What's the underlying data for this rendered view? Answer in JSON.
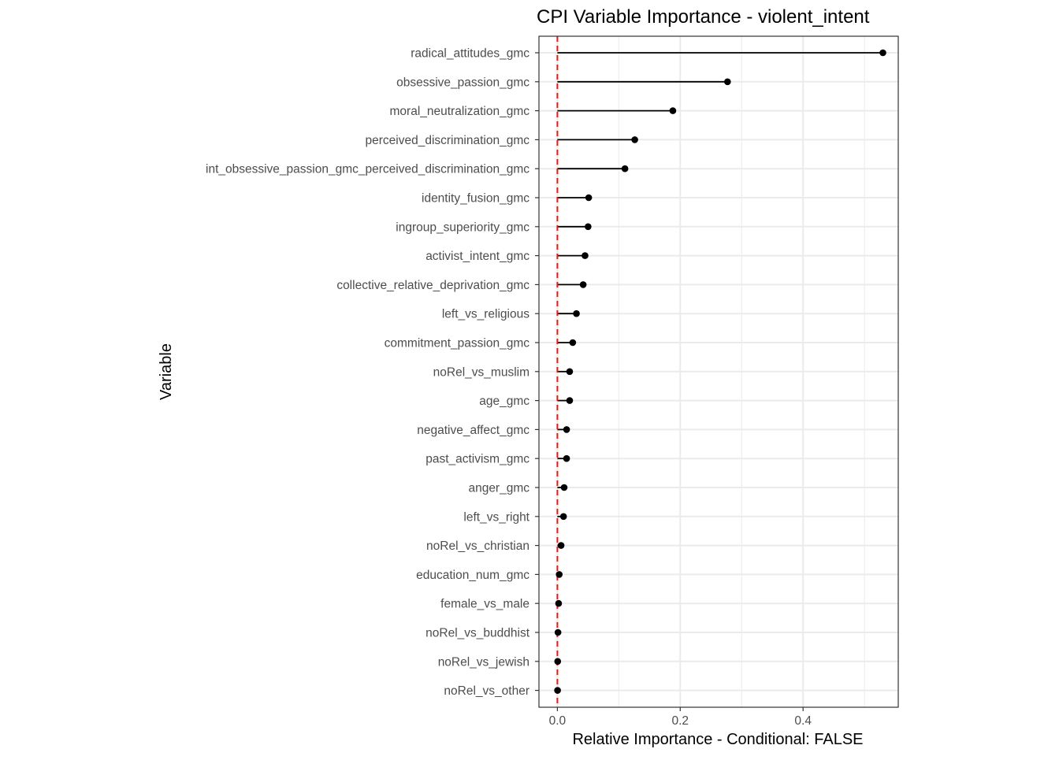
{
  "chart_data": {
    "type": "lollipop",
    "title": "CPI Variable Importance - violent_intent",
    "xlabel": "Relative Importance - Conditional: FALSE",
    "ylabel": "Variable",
    "xlim": [
      -0.03,
      0.555
    ],
    "x_ticks": [
      0.0,
      0.2,
      0.4
    ],
    "x_tick_labels": [
      "0.0",
      "0.2",
      "0.4"
    ],
    "reference_line": {
      "x": 0,
      "color": "#e31a1c",
      "style": "dashed"
    },
    "grid": true,
    "categories": [
      "radical_attitudes_gmc",
      "obsessive_passion_gmc",
      "moral_neutralization_gmc",
      "perceived_discrimination_gmc",
      "int_obsessive_passion_gmc_perceived_discrimination_gmc",
      "identity_fusion_gmc",
      "ingroup_superiority_gmc",
      "activist_intent_gmc",
      "collective_relative_deprivation_gmc",
      "left_vs_religious",
      "commitment_passion_gmc",
      "noRel_vs_muslim",
      "age_gmc",
      "negative_affect_gmc",
      "past_activism_gmc",
      "anger_gmc",
      "left_vs_right",
      "noRel_vs_christian",
      "education_num_gmc",
      "female_vs_male",
      "noRel_vs_buddhist",
      "noRel_vs_jewish",
      "noRel_vs_other"
    ],
    "values": [
      0.53,
      0.277,
      0.188,
      0.126,
      0.11,
      0.051,
      0.05,
      0.045,
      0.042,
      0.031,
      0.025,
      0.02,
      0.02,
      0.015,
      0.015,
      0.011,
      0.01,
      0.006,
      0.003,
      0.002,
      0.001,
      0.0005,
      0.0003
    ]
  },
  "colors": {
    "panel_border": "#333333",
    "grid_major": "#ebebeb",
    "segment": "#000000",
    "point": "#000000",
    "ref_line": "#e31a1c"
  }
}
